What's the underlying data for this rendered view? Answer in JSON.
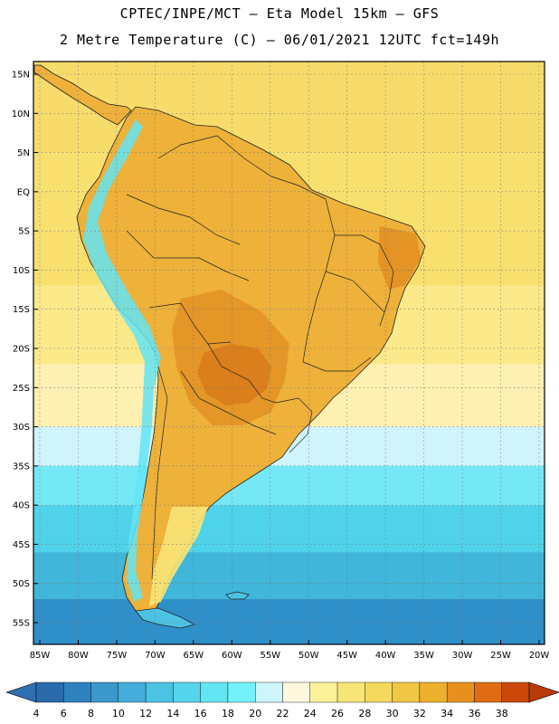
{
  "header": {
    "line1": "CPTEC/INPE/MCT –  Eta Model 15km – GFS",
    "line2": "2 Metre Temperature (C) – 06/01/2021 12UTC fct=149h"
  },
  "map": {
    "lat_ticks": [
      "15N",
      "10N",
      "5N",
      "EQ",
      "5S",
      "10S",
      "15S",
      "20S",
      "25S",
      "30S",
      "35S",
      "40S",
      "45S",
      "50S",
      "55S"
    ],
    "lon_ticks": [
      "85W",
      "80W",
      "75W",
      "70W",
      "65W",
      "60W",
      "55W",
      "50W",
      "45W",
      "40W",
      "35W",
      "30W",
      "25W",
      "20W"
    ],
    "ocean_bands": [
      {
        "from_lat": 17,
        "to_lat": 5,
        "color": "#f7dc6b"
      },
      {
        "from_lat": 5,
        "to_lat": -12,
        "color": "#f8e06f"
      },
      {
        "from_lat": -12,
        "to_lat": -22,
        "color": "#fbe98a"
      },
      {
        "from_lat": -22,
        "to_lat": -30,
        "color": "#fdf0b0"
      },
      {
        "from_lat": -30,
        "to_lat": -35,
        "color": "#cff4fb"
      },
      {
        "from_lat": -35,
        "to_lat": -40,
        "color": "#74e9f5"
      },
      {
        "from_lat": -40,
        "to_lat": -46,
        "color": "#4fd3ea"
      },
      {
        "from_lat": -46,
        "to_lat": -52,
        "color": "#3fb6da"
      },
      {
        "from_lat": -52,
        "to_lat": -58,
        "color": "#2f8fc9"
      }
    ]
  },
  "colorbar": {
    "labels": [
      "4",
      "6",
      "8",
      "10",
      "12",
      "14",
      "16",
      "18",
      "20",
      "22",
      "24",
      "26",
      "28",
      "30",
      "32",
      "34",
      "36",
      "38"
    ],
    "colors": [
      "#2b6aab",
      "#2f82c0",
      "#3c97cc",
      "#44adda",
      "#4cc2e4",
      "#55d5ec",
      "#63e4f4",
      "#73f2fb",
      "#cdf5fb",
      "#fdf8de",
      "#fbf29a",
      "#f7e578",
      "#f5d95d",
      "#f0c645",
      "#edb02c",
      "#e7901d",
      "#df6c12",
      "#cc480a"
    ],
    "low_color": "#2f6fb1",
    "high_color": "#b83a08"
  }
}
